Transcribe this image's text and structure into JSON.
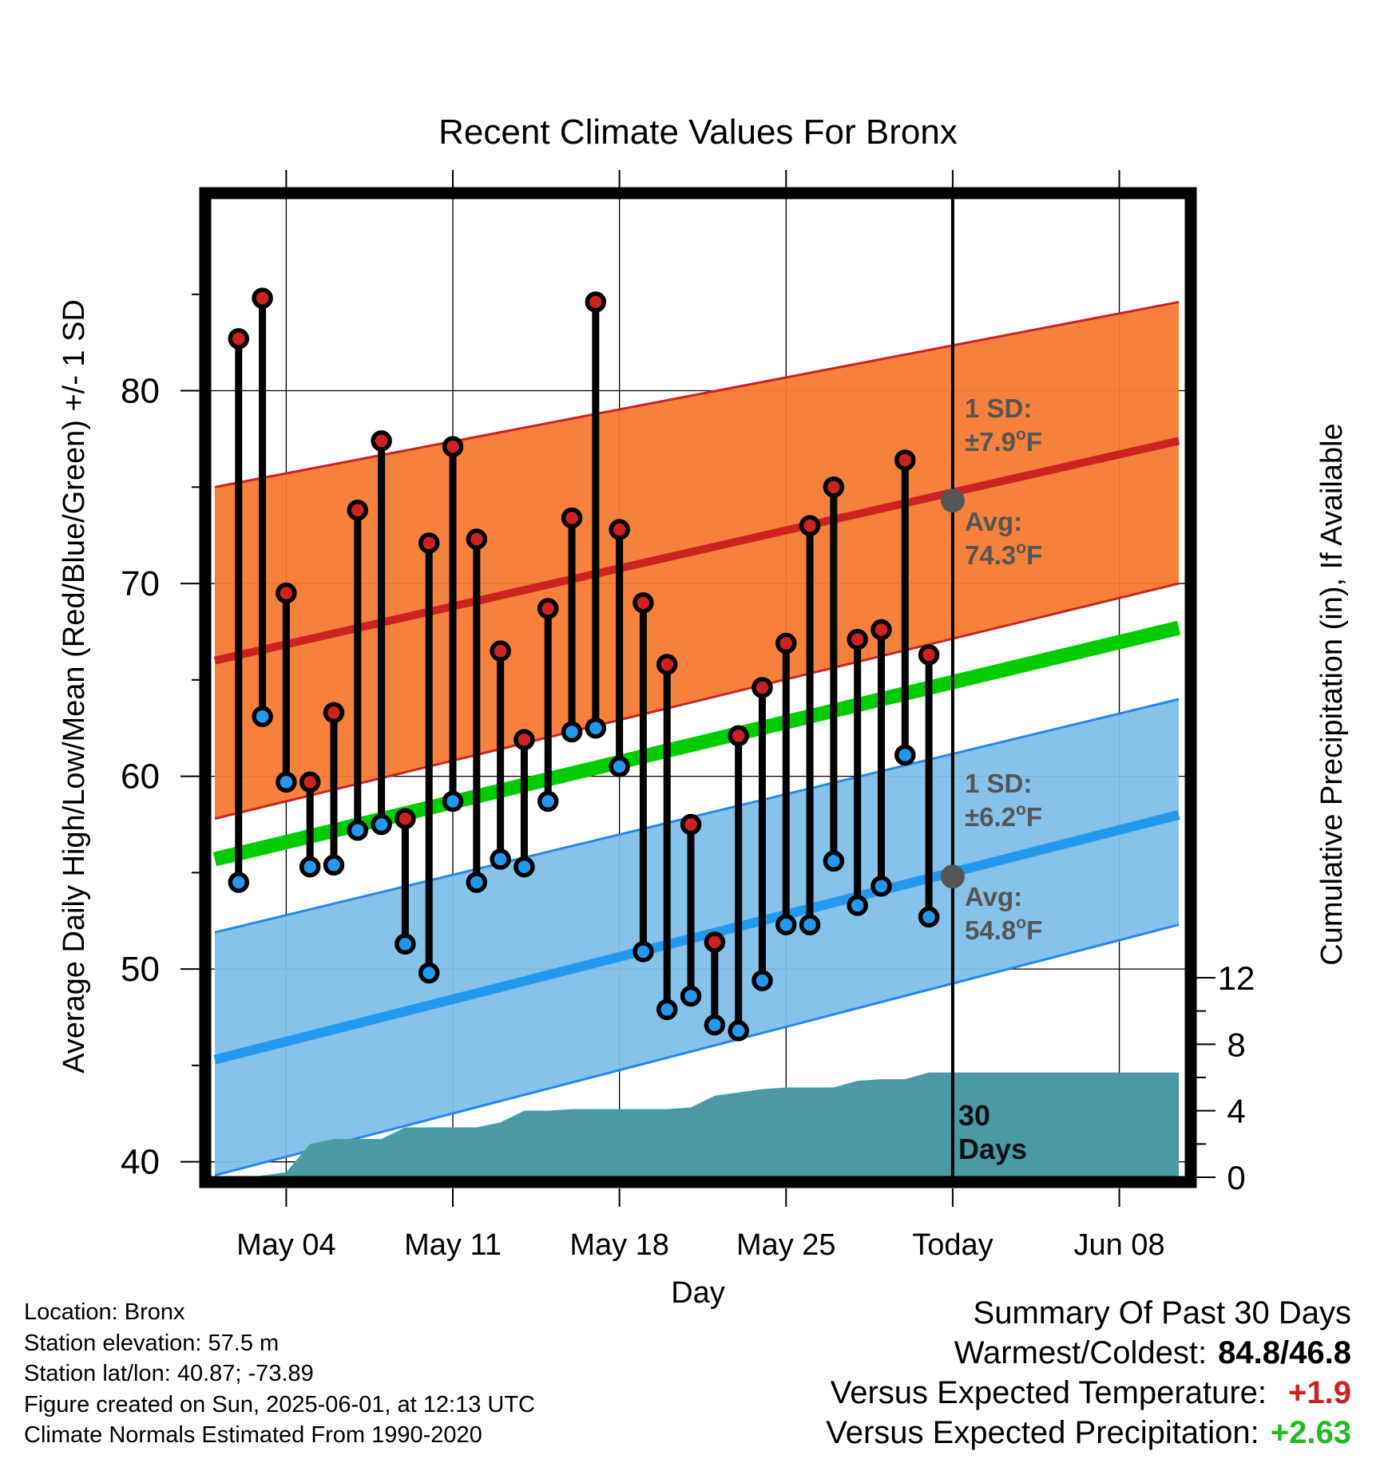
{
  "chart_data": {
    "type": "line",
    "title": "Recent Climate Values For Bronx",
    "xlabel": "Day",
    "ylabel": "Average Daily High/Low/Mean (Red/Blue/Green) +/- 1 SD",
    "y2label": "Cumulative Precipitation (in), If Available",
    "xlim": [
      -3.2,
      37.8
    ],
    "ylim": [
      39.2,
      90
    ],
    "y2lim": [
      0,
      30
    ],
    "x_ticks": [
      {
        "day": 0,
        "label": "May 04"
      },
      {
        "day": 7,
        "label": "May 11"
      },
      {
        "day": 14,
        "label": "May 18"
      },
      {
        "day": 21,
        "label": "May 25"
      },
      {
        "day": 28,
        "label": "Today"
      },
      {
        "day": 35,
        "label": "Jun 08"
      }
    ],
    "y_ticks": [
      40,
      50,
      60,
      70,
      80
    ],
    "y2_ticks": [
      0,
      4,
      8,
      12
    ],
    "grid": true,
    "today_day": 28,
    "today_label": "30 Days",
    "series": [
      {
        "name": "High",
        "color": "#cc2222",
        "days": [
          -2,
          -1,
          0,
          1,
          2,
          3,
          4,
          5,
          6,
          7,
          8,
          9,
          10,
          11,
          12,
          13,
          14,
          15,
          16,
          17,
          18,
          19,
          20,
          21,
          22,
          23,
          24,
          25,
          26,
          27
        ],
        "values": [
          82.7,
          84.8,
          69.5,
          59.7,
          63.3,
          73.8,
          77.4,
          57.8,
          72.1,
          77.1,
          72.3,
          66.5,
          61.9,
          68.7,
          73.4,
          84.6,
          72.8,
          69.0,
          65.8,
          57.5,
          51.4,
          62.1,
          64.6,
          66.9,
          73.0,
          75.0,
          67.1,
          67.6,
          76.4,
          66.3
        ]
      },
      {
        "name": "Low",
        "color": "#2299ee",
        "days": [
          -2,
          -1,
          0,
          1,
          2,
          3,
          4,
          5,
          6,
          7,
          8,
          9,
          10,
          11,
          12,
          13,
          14,
          15,
          16,
          17,
          18,
          19,
          20,
          21,
          22,
          23,
          24,
          25,
          26,
          27
        ],
        "values": [
          54.5,
          63.1,
          59.7,
          55.3,
          55.4,
          57.2,
          57.5,
          51.3,
          49.8,
          58.7,
          54.5,
          55.7,
          55.3,
          58.7,
          62.3,
          62.5,
          60.5,
          50.9,
          47.9,
          48.6,
          47.1,
          46.8,
          49.4,
          52.3,
          52.3,
          55.6,
          53.3,
          54.3,
          61.1,
          52.7
        ]
      },
      {
        "name": "Normal High",
        "color": "#cc2222",
        "days": [
          -3,
          37.5
        ],
        "values": [
          66.0,
          77.4
        ]
      },
      {
        "name": "Normal High SD upper",
        "days": [
          -3,
          37.5
        ],
        "values": [
          75.0,
          84.6
        ]
      },
      {
        "name": "Normal High SD lower",
        "days": [
          -3,
          37.5
        ],
        "values": [
          57.8,
          70.0
        ]
      },
      {
        "name": "Normal Mean",
        "color": "#00cc00",
        "days": [
          -3,
          37.5
        ],
        "values": [
          55.7,
          67.7
        ]
      },
      {
        "name": "Normal Low",
        "color": "#2299ee",
        "days": [
          -3,
          37.5
        ],
        "values": [
          45.3,
          58.0
        ]
      },
      {
        "name": "Normal Low SD upper",
        "days": [
          -3,
          37.5
        ],
        "values": [
          51.9,
          64.0
        ]
      },
      {
        "name": "Normal Low SD lower",
        "days": [
          -3,
          37.5
        ],
        "values": [
          39.3,
          52.3
        ]
      },
      {
        "name": "Cumulative Precipitation",
        "color": "#4a9aa5",
        "days": [
          -2.5,
          -1.5,
          -1,
          0,
          1,
          2,
          3,
          4,
          5,
          6,
          7,
          8,
          9,
          10,
          11,
          12,
          13,
          14,
          15,
          16,
          17,
          18,
          19,
          20,
          21,
          22,
          23,
          24,
          25,
          26,
          27,
          37.5
        ],
        "values": [
          0,
          0,
          0.1,
          0.3,
          2.0,
          2.3,
          2.3,
          2.3,
          3.0,
          3.0,
          3.0,
          3.0,
          3.3,
          4.0,
          4.0,
          4.1,
          4.1,
          4.1,
          4.1,
          4.1,
          4.2,
          4.9,
          5.1,
          5.3,
          5.4,
          5.4,
          5.4,
          5.8,
          5.9,
          5.9,
          6.3,
          6.3
        ]
      }
    ],
    "annotations": [
      {
        "id": "high_sd",
        "lines": [
          "1 SD:",
          "±7.9",
          "°",
          "F"
        ],
        "text": "1 SD: ±7.9°F"
      },
      {
        "id": "high_avg",
        "text": "Avg: 74.3°F",
        "label": "Avg:",
        "value": "74.3",
        "unit_deg": "o",
        "unit": "F",
        "y": 74.3
      },
      {
        "id": "low_sd",
        "text": "1 SD: ±6.2°F"
      },
      {
        "id": "low_avg",
        "text": "Avg: 54.8°F",
        "y": 54.8
      }
    ]
  },
  "labels": {
    "high_sd_line1": "1 SD:",
    "high_sd_line2": "±7.9",
    "low_sd_line1": "1 SD:",
    "low_sd_line2": "±6.2",
    "avg": "Avg:",
    "high_avg_value": "74.3",
    "low_avg_value": "54.8",
    "deg": "o",
    "unit": "F",
    "today_line1": "30",
    "today_line2": "Days"
  },
  "info": {
    "location": "Location: Bronx",
    "elevation": "Station elevation: 57.5 m",
    "latlon": "Station lat/lon: 40.87; -73.89",
    "created": "Figure created on Sun, 2025-06-01, at 12:13 UTC",
    "normals": "Climate Normals Estimated From 1990-2020"
  },
  "summary": {
    "title": "Summary Of Past 30 Days",
    "warm_cold_label": "Warmest/Coldest:",
    "warmest": "84.8",
    "slash": "/",
    "coldest": "46.8",
    "temp_label": "Versus Expected Temperature:",
    "temp_value": "+1.9",
    "temp_color": "#cc2222",
    "precip_label": "Versus Expected Precipitation:",
    "precip_value": "+2.63",
    "precip_color": "#22bb22"
  }
}
